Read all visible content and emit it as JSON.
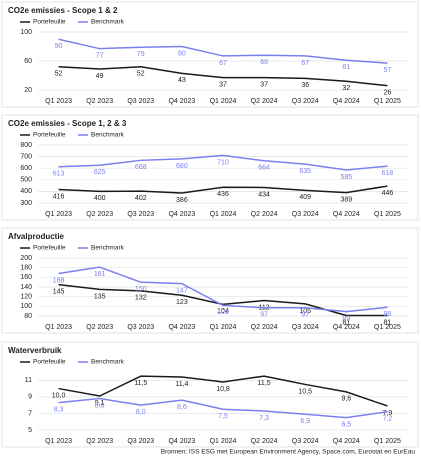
{
  "chart_data": [
    {
      "type": "line",
      "title": "CO2e emissies - Scope 1 & 2",
      "categories": [
        "Q1 2023",
        "Q2 2023",
        "Q3 2023",
        "Q4 2023",
        "Q1 2024",
        "Q2 2024",
        "Q3 2024",
        "Q4 2024",
        "Q1 2025"
      ],
      "series": [
        {
          "name": "Portefeuille",
          "color": "#1a1a1a",
          "values": [
            52,
            49,
            52,
            43,
            37,
            37,
            36,
            32,
            26
          ]
        },
        {
          "name": "Benchmark",
          "color": "#7b80f0",
          "values": [
            90,
            77,
            79,
            80,
            67,
            68,
            67,
            61,
            57
          ]
        }
      ],
      "ylim": [
        20,
        100
      ],
      "yticks": [
        20,
        60,
        100
      ],
      "grid": true
    },
    {
      "type": "line",
      "title": "CO2e emissies - Scope 1, 2 & 3",
      "categories": [
        "Q1 2023",
        "Q2 2023",
        "Q3 2023",
        "Q4 2023",
        "Q1 2024",
        "Q2 2024",
        "Q3 2024",
        "Q4 2024",
        "Q1 2025"
      ],
      "series": [
        {
          "name": "Portefeuille",
          "color": "#1a1a1a",
          "values": [
            416,
            400,
            402,
            386,
            436,
            434,
            409,
            389,
            446
          ]
        },
        {
          "name": "Benchmark",
          "color": "#7b80f0",
          "values": [
            613,
            625,
            668,
            680,
            710,
            664,
            635,
            585,
            618
          ]
        }
      ],
      "ylim": [
        300,
        800
      ],
      "yticks": [
        300,
        400,
        500,
        600,
        700,
        800
      ],
      "grid": true
    },
    {
      "type": "line",
      "title": "Afvalproductie",
      "categories": [
        "Q1 2023",
        "Q2 2023",
        "Q3 2023",
        "Q4 2023",
        "Q1 2024",
        "Q2 2024",
        "Q3 2024",
        "Q4 2024",
        "Q1 2025"
      ],
      "series": [
        {
          "name": "Portefeuille",
          "color": "#1a1a1a",
          "values": [
            145,
            135,
            132,
            123,
            104,
            112,
            105,
            81,
            81
          ]
        },
        {
          "name": "Benchmark",
          "color": "#7b80f0",
          "values": [
            168,
            181,
            150,
            147,
            102,
            97,
            97,
            89,
            98
          ]
        }
      ],
      "ylim": [
        80,
        200
      ],
      "yticks": [
        80,
        100,
        120,
        140,
        160,
        180,
        200
      ],
      "grid": true
    },
    {
      "type": "line",
      "title": "Waterverbruik",
      "categories": [
        "Q1 2023",
        "Q2 2023",
        "Q3 2023",
        "Q4 2023",
        "Q1 2024",
        "Q2 2024",
        "Q3 2024",
        "Q4 2024",
        "Q1 2025"
      ],
      "series": [
        {
          "name": "Portefeuille",
          "color": "#1a1a1a",
          "values": [
            10.0,
            9.1,
            11.5,
            11.4,
            10.8,
            11.5,
            10.5,
            9.6,
            7.9
          ],
          "value_labels": [
            "10,0",
            "9,1",
            "11,5",
            "11,4",
            "10,8",
            "11,5",
            "10,5",
            "9,6",
            "7,9"
          ]
        },
        {
          "name": "Benchmark",
          "color": "#7b80f0",
          "values": [
            8.3,
            8.8,
            8.0,
            8.6,
            7.5,
            7.3,
            6.9,
            6.5,
            7.2
          ],
          "value_labels": [
            "8,3",
            "8,8",
            "8,0",
            "8,6",
            "7,5",
            "7,3",
            "6,9",
            "6,5",
            "7,2"
          ]
        }
      ],
      "ylim": [
        5,
        12
      ],
      "yticks": [
        5,
        7,
        9,
        11
      ],
      "grid": true
    }
  ],
  "source": "Bronnen: ISS ESG met European Environment Agency, Space.com, Eurostat en EurEau"
}
